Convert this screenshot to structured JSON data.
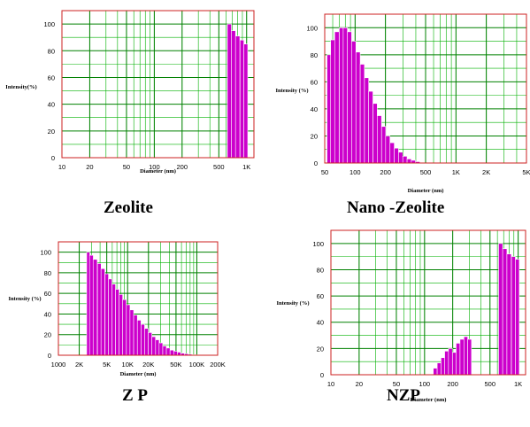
{
  "captions": [
    "Zeolite",
    "Nano -Zeolite",
    "Z P",
    "NZP"
  ],
  "colors": {
    "bar": "#cc00cc",
    "frame": "#cc2020",
    "grid": "#008000",
    "background": "#ffffff"
  },
  "chart_data": [
    {
      "type": "bar",
      "title": "Zeolite",
      "xlabel": "Diameter (nm)",
      "ylabel": "Intensity(%)",
      "xscale": "log",
      "xlim": [
        10,
        1200
      ],
      "ylim": [
        0,
        110
      ],
      "x_ticks": [
        "10",
        "20",
        "50",
        "100",
        "200",
        "500",
        "1K"
      ],
      "y_ticks": [
        "0",
        "20",
        "40",
        "60",
        "80",
        "100"
      ],
      "grid": true,
      "bars": [
        {
          "x": 650,
          "y": 100
        },
        {
          "x": 720,
          "y": 95
        },
        {
          "x": 800,
          "y": 91
        },
        {
          "x": 890,
          "y": 88
        },
        {
          "x": 980,
          "y": 85
        }
      ]
    },
    {
      "type": "bar",
      "title": "Nano -Zeolite",
      "xlabel": "Diameter (nm)",
      "ylabel": "Intensity (%)",
      "xscale": "log",
      "xlim": [
        50,
        5000
      ],
      "ylim": [
        0,
        110
      ],
      "x_ticks": [
        "50",
        "100",
        "200",
        "500",
        "1K",
        "2K",
        "5K"
      ],
      "y_ticks": [
        "0",
        "20",
        "40",
        "60",
        "80",
        "100"
      ],
      "grid": true,
      "bars": [
        {
          "x": 55,
          "y": 80
        },
        {
          "x": 60,
          "y": 91
        },
        {
          "x": 66,
          "y": 97
        },
        {
          "x": 73,
          "y": 100
        },
        {
          "x": 80,
          "y": 100
        },
        {
          "x": 88,
          "y": 97
        },
        {
          "x": 97,
          "y": 90
        },
        {
          "x": 107,
          "y": 82
        },
        {
          "x": 118,
          "y": 73
        },
        {
          "x": 130,
          "y": 63
        },
        {
          "x": 143,
          "y": 53
        },
        {
          "x": 158,
          "y": 44
        },
        {
          "x": 174,
          "y": 35
        },
        {
          "x": 192,
          "y": 27
        },
        {
          "x": 211,
          "y": 20
        },
        {
          "x": 233,
          "y": 15
        },
        {
          "x": 257,
          "y": 11
        },
        {
          "x": 283,
          "y": 8
        },
        {
          "x": 312,
          "y": 5
        },
        {
          "x": 344,
          "y": 3
        },
        {
          "x": 379,
          "y": 2
        },
        {
          "x": 418,
          "y": 1
        }
      ]
    },
    {
      "type": "bar",
      "title": "Z P",
      "xlabel": "Diameter (nm)",
      "ylabel": "Intensity (%)",
      "xscale": "log",
      "xlim": [
        1000,
        200000
      ],
      "ylim": [
        0,
        110
      ],
      "x_ticks": [
        "1000",
        "2K",
        "5K",
        "10K",
        "20K",
        "50K",
        "100K",
        "200K"
      ],
      "y_ticks": [
        "0",
        "20",
        "40",
        "60",
        "80",
        "100"
      ],
      "grid": true,
      "bars": [
        {
          "x": 2700,
          "y": 100
        },
        {
          "x": 3000,
          "y": 97
        },
        {
          "x": 3400,
          "y": 93
        },
        {
          "x": 3900,
          "y": 89
        },
        {
          "x": 4400,
          "y": 84
        },
        {
          "x": 5000,
          "y": 79
        },
        {
          "x": 5600,
          "y": 74
        },
        {
          "x": 6300,
          "y": 69
        },
        {
          "x": 7100,
          "y": 64
        },
        {
          "x": 8000,
          "y": 59
        },
        {
          "x": 9000,
          "y": 54
        },
        {
          "x": 10200,
          "y": 49
        },
        {
          "x": 11500,
          "y": 44
        },
        {
          "x": 13000,
          "y": 39
        },
        {
          "x": 14700,
          "y": 34
        },
        {
          "x": 16600,
          "y": 30
        },
        {
          "x": 18700,
          "y": 26
        },
        {
          "x": 21100,
          "y": 22
        },
        {
          "x": 23800,
          "y": 18
        },
        {
          "x": 26900,
          "y": 15
        },
        {
          "x": 30300,
          "y": 12
        },
        {
          "x": 34200,
          "y": 9
        },
        {
          "x": 38600,
          "y": 7
        },
        {
          "x": 43600,
          "y": 5
        },
        {
          "x": 49200,
          "y": 4
        },
        {
          "x": 55500,
          "y": 3
        },
        {
          "x": 62600,
          "y": 2
        },
        {
          "x": 70700,
          "y": 1.5
        },
        {
          "x": 79800,
          "y": 1
        },
        {
          "x": 90000,
          "y": 0.6
        },
        {
          "x": 101600,
          "y": 0.4
        }
      ]
    },
    {
      "type": "bar",
      "title": "NZP",
      "xlabel": "Diameter (nm)",
      "ylabel": "Intensity (%)",
      "xscale": "log",
      "xlim": [
        10,
        1200
      ],
      "ylim": [
        0,
        110
      ],
      "x_ticks": [
        "10",
        "20",
        "50",
        "100",
        "200",
        "500",
        "1K"
      ],
      "y_ticks": [
        "0",
        "20",
        "40",
        "60",
        "80",
        "100"
      ],
      "grid": true,
      "bars": [
        {
          "x": 130,
          "y": 5
        },
        {
          "x": 143,
          "y": 9
        },
        {
          "x": 157,
          "y": 13
        },
        {
          "x": 172,
          "y": 18
        },
        {
          "x": 189,
          "y": 20
        },
        {
          "x": 208,
          "y": 17
        },
        {
          "x": 228,
          "y": 24
        },
        {
          "x": 251,
          "y": 27
        },
        {
          "x": 276,
          "y": 29
        },
        {
          "x": 303,
          "y": 27
        },
        {
          "x": 650,
          "y": 100
        },
        {
          "x": 720,
          "y": 96
        },
        {
          "x": 800,
          "y": 92
        },
        {
          "x": 890,
          "y": 90
        },
        {
          "x": 980,
          "y": 88
        }
      ]
    }
  ]
}
